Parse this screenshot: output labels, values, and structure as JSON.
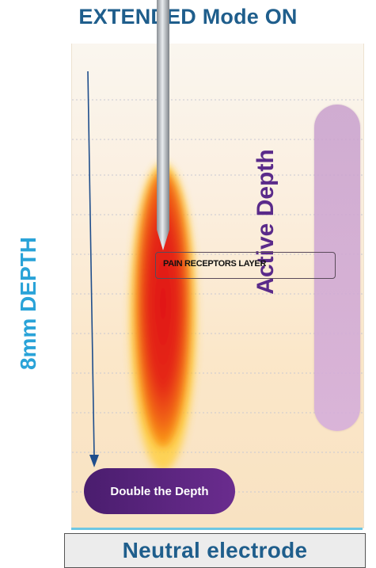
{
  "header": {
    "mode_title": "EXTENDED Mode ON"
  },
  "depth_indicator": {
    "label": "8mm DEPTH",
    "color": "#2aa3d8"
  },
  "tissue_panel": {
    "active_depth_label": "Active Depth",
    "pain_receptors_label": "PAIN RECEPTORS LAYER",
    "double_depth_label": "Double the Depth"
  },
  "footer": {
    "electrode_label": "Neutral electrode"
  },
  "colors": {
    "title_blue": "#1f5e8c",
    "depth_blue": "#2aa3d8",
    "active_purple": "#5a2a8a",
    "pill_dark": "#4a1d6e"
  }
}
